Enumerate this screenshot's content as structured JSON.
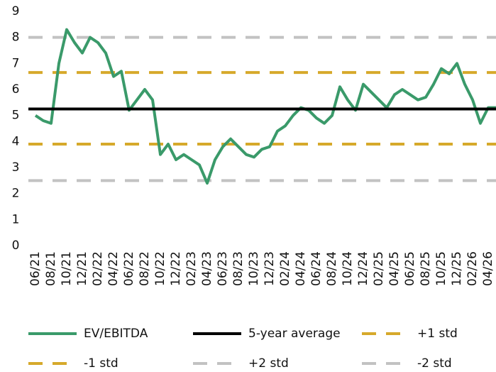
{
  "chart_data": {
    "type": "line",
    "categories": [
      "06/21",
      null,
      "08/21",
      null,
      "10/21",
      null,
      "12/21",
      null,
      "02/22",
      null,
      "04/22",
      null,
      "06/22",
      null,
      "08/22",
      null,
      "10/22",
      null,
      "12/22",
      null,
      "02/23",
      null,
      "04/23",
      null,
      "06/23",
      null,
      "08/23",
      null,
      "10/23",
      null,
      "12/23",
      null,
      "02/24",
      null,
      "04/24",
      null,
      "06/24",
      null,
      "08/24",
      null,
      "10/24",
      null,
      "12/24",
      null,
      "02/25",
      null,
      "04/25",
      null,
      "06/25",
      null,
      "08/25",
      null,
      "10/25",
      null,
      "12/25",
      null,
      "02/26",
      null,
      "04/26",
      null
    ],
    "series": [
      {
        "name": "EV/EBITDA",
        "color": "#3a9a6a",
        "values": [
          5.0,
          4.8,
          4.7,
          7.0,
          8.3,
          7.8,
          7.4,
          8.0,
          7.8,
          7.4,
          6.5,
          6.7,
          5.2,
          5.6,
          6.0,
          5.6,
          3.5,
          3.9,
          3.3,
          3.5,
          3.3,
          3.1,
          2.4,
          3.3,
          3.8,
          4.1,
          3.8,
          3.5,
          3.4,
          3.7,
          3.8,
          4.4,
          4.6,
          5.0,
          5.3,
          5.2,
          4.9,
          4.7,
          5.0,
          6.1,
          5.6,
          5.2,
          6.2,
          5.9,
          5.6,
          5.3,
          5.8,
          6.0,
          5.8,
          5.6,
          5.7,
          6.2,
          6.8,
          6.6,
          7.0,
          6.2,
          5.6,
          4.7,
          5.3,
          5.3
        ]
      }
    ],
    "reference_lines": [
      {
        "name": "5-year average",
        "value": 5.25,
        "color": "#000000",
        "dashed": false
      },
      {
        "name": "+1 std",
        "value": 6.65,
        "color": "#d6a92b",
        "dashed": true
      },
      {
        "name": "-1 std",
        "value": 3.9,
        "color": "#d6a92b",
        "dashed": true
      },
      {
        "name": "+2 std",
        "value": 8.0,
        "color": "#c2c2c2",
        "dashed": true
      },
      {
        "name": "-2 std",
        "value": 2.5,
        "color": "#c2c2c2",
        "dashed": true
      }
    ],
    "ylim": [
      0,
      9
    ],
    "yticks": [
      0,
      1,
      2,
      3,
      4,
      5,
      6,
      7,
      8,
      9
    ],
    "grid": false
  }
}
